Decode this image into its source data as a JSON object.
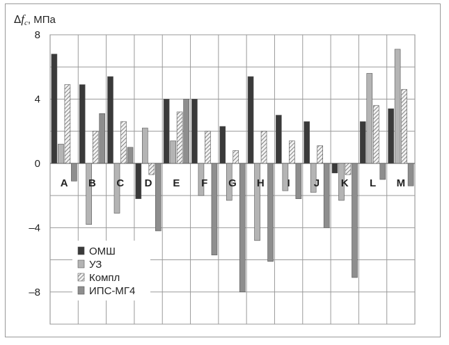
{
  "chart_data": {
    "type": "bar",
    "ylabel": {
      "prefix": "Δ",
      "symbol": "f",
      "subscript": "c",
      "unit": ", МПа"
    },
    "ylim": [
      -10,
      8
    ],
    "yticks": [
      8,
      4,
      0,
      -4,
      -8
    ],
    "ytick_labels": [
      "8",
      "4",
      "0",
      "–4",
      "–8"
    ],
    "categories": [
      "A",
      "B",
      "C",
      "D",
      "E",
      "F",
      "G",
      "H",
      "I",
      "J",
      "K",
      "L",
      "M"
    ],
    "series": [
      {
        "name": "ОМШ",
        "color": "#3a3a3a",
        "pattern": "solid",
        "values": [
          6.8,
          4.9,
          5.4,
          -2.2,
          4.0,
          4.0,
          2.3,
          5.4,
          3.0,
          2.6,
          -0.6,
          2.6,
          3.4
        ]
      },
      {
        "name": "УЗ",
        "color": "#b4b4b4",
        "pattern": "solid",
        "values": [
          1.2,
          -3.8,
          -3.1,
          2.2,
          1.4,
          -2.0,
          -2.3,
          -4.8,
          -1.7,
          -1.8,
          -2.3,
          5.6,
          7.1
        ]
      },
      {
        "name": "Компл",
        "color": "#e8e8e8",
        "pattern": "hatch",
        "values": [
          4.9,
          2.0,
          2.6,
          -0.7,
          3.2,
          2.0,
          0.8,
          2.0,
          1.4,
          1.1,
          -0.7,
          3.6,
          4.6
        ]
      },
      {
        "name": "ИПС-МГ4",
        "color": "#8e8e8e",
        "pattern": "solid",
        "values": [
          -1.1,
          3.1,
          1.0,
          -4.2,
          4.0,
          -5.7,
          -8.0,
          -6.1,
          -2.2,
          -4.0,
          -7.1,
          -1.0,
          -1.4
        ]
      }
    ],
    "grid": {
      "horizontal": true,
      "vertical": true
    },
    "legend_position": "bottom-left"
  }
}
